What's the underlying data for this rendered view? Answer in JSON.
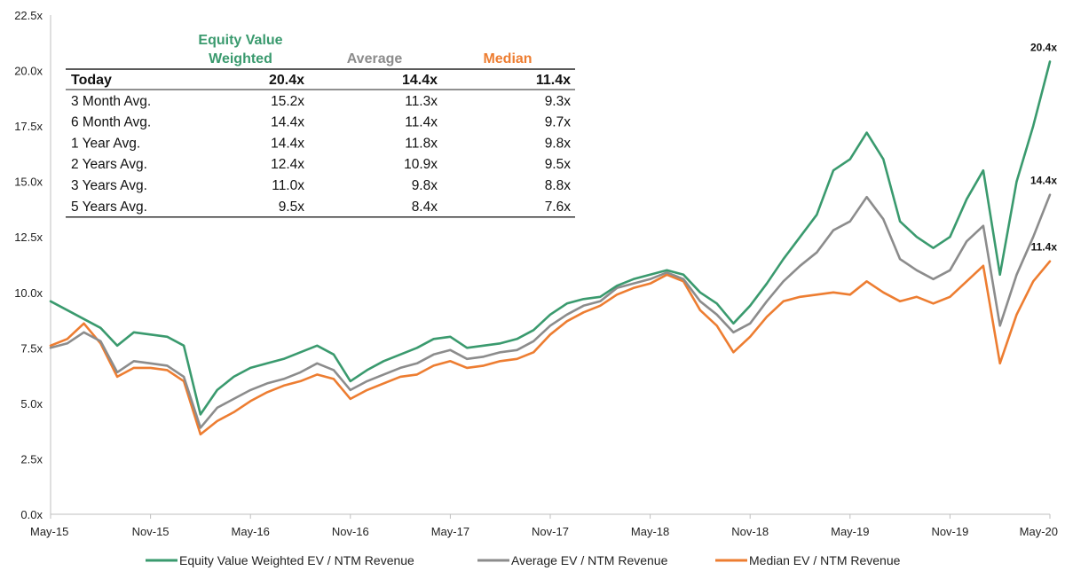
{
  "chart_data": {
    "type": "line",
    "title": "",
    "xlabel": "",
    "ylabel": "",
    "ylim": [
      0,
      22.5
    ],
    "y_ticks": [
      "0.0x",
      "2.5x",
      "5.0x",
      "7.5x",
      "10.0x",
      "12.5x",
      "15.0x",
      "17.5x",
      "20.0x",
      "22.5x"
    ],
    "x_ticks": [
      "May-15",
      "Nov-15",
      "May-16",
      "Nov-16",
      "May-17",
      "Nov-17",
      "May-18",
      "Nov-18",
      "May-19",
      "Nov-19",
      "May-20"
    ],
    "grid": false,
    "legend_position": "bottom",
    "series": [
      {
        "name": "Equity Value Weighted EV / NTM Revenue",
        "color": "#3a9a6e",
        "end_label": "20.4x",
        "x": [
          "2015-05",
          "2015-06",
          "2015-07",
          "2015-08",
          "2015-09",
          "2015-10",
          "2015-11",
          "2015-12",
          "2016-01",
          "2016-02",
          "2016-03",
          "2016-04",
          "2016-05",
          "2016-06",
          "2016-07",
          "2016-08",
          "2016-09",
          "2016-10",
          "2016-11",
          "2016-12",
          "2017-01",
          "2017-02",
          "2017-03",
          "2017-04",
          "2017-05",
          "2017-06",
          "2017-07",
          "2017-08",
          "2017-09",
          "2017-10",
          "2017-11",
          "2017-12",
          "2018-01",
          "2018-02",
          "2018-03",
          "2018-04",
          "2018-05",
          "2018-06",
          "2018-07",
          "2018-08",
          "2018-09",
          "2018-10",
          "2018-11",
          "2018-12",
          "2019-01",
          "2019-02",
          "2019-03",
          "2019-04",
          "2019-05",
          "2019-06",
          "2019-07",
          "2019-08",
          "2019-09",
          "2019-10",
          "2019-11",
          "2019-12",
          "2020-01",
          "2020-02",
          "2020-03",
          "2020-04",
          "2020-05"
        ],
        "values": [
          9.6,
          9.2,
          8.8,
          8.4,
          7.6,
          8.2,
          8.1,
          8.0,
          7.6,
          4.5,
          5.6,
          6.2,
          6.6,
          6.8,
          7.0,
          7.3,
          7.6,
          7.2,
          6.0,
          6.5,
          6.9,
          7.2,
          7.5,
          7.9,
          8.0,
          7.5,
          7.6,
          7.7,
          7.9,
          8.3,
          9.0,
          9.5,
          9.7,
          9.8,
          10.3,
          10.6,
          10.8,
          11.0,
          10.8,
          10.0,
          9.5,
          8.6,
          9.4,
          10.4,
          11.5,
          12.5,
          13.5,
          15.5,
          16.0,
          17.2,
          16.0,
          13.2,
          12.5,
          12.0,
          12.5,
          14.2,
          15.5,
          10.8,
          15.0,
          17.5,
          20.4
        ]
      },
      {
        "name": "Average EV / NTM Revenue",
        "color": "#8c8c8c",
        "end_label": "14.4x",
        "x": [
          "2015-05",
          "2015-06",
          "2015-07",
          "2015-08",
          "2015-09",
          "2015-10",
          "2015-11",
          "2015-12",
          "2016-01",
          "2016-02",
          "2016-03",
          "2016-04",
          "2016-05",
          "2016-06",
          "2016-07",
          "2016-08",
          "2016-09",
          "2016-10",
          "2016-11",
          "2016-12",
          "2017-01",
          "2017-02",
          "2017-03",
          "2017-04",
          "2017-05",
          "2017-06",
          "2017-07",
          "2017-08",
          "2017-09",
          "2017-10",
          "2017-11",
          "2017-12",
          "2018-01",
          "2018-02",
          "2018-03",
          "2018-04",
          "2018-05",
          "2018-06",
          "2018-07",
          "2018-08",
          "2018-09",
          "2018-10",
          "2018-11",
          "2018-12",
          "2019-01",
          "2019-02",
          "2019-03",
          "2019-04",
          "2019-05",
          "2019-06",
          "2019-07",
          "2019-08",
          "2019-09",
          "2019-10",
          "2019-11",
          "2019-12",
          "2020-01",
          "2020-02",
          "2020-03",
          "2020-04",
          "2020-05"
        ],
        "values": [
          7.5,
          7.7,
          8.2,
          7.8,
          6.4,
          6.9,
          6.8,
          6.7,
          6.2,
          3.9,
          4.8,
          5.2,
          5.6,
          5.9,
          6.1,
          6.4,
          6.8,
          6.5,
          5.6,
          6.0,
          6.3,
          6.6,
          6.8,
          7.2,
          7.4,
          7.0,
          7.1,
          7.3,
          7.4,
          7.8,
          8.5,
          9.0,
          9.4,
          9.6,
          10.2,
          10.4,
          10.6,
          10.9,
          10.6,
          9.6,
          9.0,
          8.2,
          8.6,
          9.6,
          10.5,
          11.2,
          11.8,
          12.8,
          13.2,
          14.3,
          13.3,
          11.5,
          11.0,
          10.6,
          11.0,
          12.3,
          13.0,
          8.5,
          10.8,
          12.5,
          14.4
        ]
      },
      {
        "name": "Median EV / NTM Revenue",
        "color": "#ed7d31",
        "end_label": "11.4x",
        "x": [
          "2015-05",
          "2015-06",
          "2015-07",
          "2015-08",
          "2015-09",
          "2015-10",
          "2015-11",
          "2015-12",
          "2016-01",
          "2016-02",
          "2016-03",
          "2016-04",
          "2016-05",
          "2016-06",
          "2016-07",
          "2016-08",
          "2016-09",
          "2016-10",
          "2016-11",
          "2016-12",
          "2017-01",
          "2017-02",
          "2017-03",
          "2017-04",
          "2017-05",
          "2017-06",
          "2017-07",
          "2017-08",
          "2017-09",
          "2017-10",
          "2017-11",
          "2017-12",
          "2018-01",
          "2018-02",
          "2018-03",
          "2018-04",
          "2018-05",
          "2018-06",
          "2018-07",
          "2018-08",
          "2018-09",
          "2018-10",
          "2018-11",
          "2018-12",
          "2019-01",
          "2019-02",
          "2019-03",
          "2019-04",
          "2019-05",
          "2019-06",
          "2019-07",
          "2019-08",
          "2019-09",
          "2019-10",
          "2019-11",
          "2019-12",
          "2020-01",
          "2020-02",
          "2020-03",
          "2020-04",
          "2020-05"
        ],
        "values": [
          7.6,
          7.9,
          8.6,
          7.7,
          6.2,
          6.6,
          6.6,
          6.5,
          6.0,
          3.6,
          4.2,
          4.6,
          5.1,
          5.5,
          5.8,
          6.0,
          6.3,
          6.1,
          5.2,
          5.6,
          5.9,
          6.2,
          6.3,
          6.7,
          6.9,
          6.6,
          6.7,
          6.9,
          7.0,
          7.3,
          8.1,
          8.7,
          9.1,
          9.4,
          9.9,
          10.2,
          10.4,
          10.8,
          10.5,
          9.2,
          8.5,
          7.3,
          8.0,
          8.9,
          9.6,
          9.8,
          9.9,
          10.0,
          9.9,
          10.5,
          10.0,
          9.6,
          9.8,
          9.5,
          9.8,
          10.5,
          11.2,
          6.8,
          9.0,
          10.5,
          11.4
        ]
      }
    ],
    "summary_table": {
      "headers": {
        "weighted_line1": "Equity Value",
        "weighted_line2": "Weighted",
        "average": "Average",
        "median": "Median"
      },
      "rows": [
        {
          "label": "Today",
          "weighted": "20.4x",
          "average": "14.4x",
          "median": "11.4x",
          "bold": true
        },
        {
          "label": "3 Month Avg.",
          "weighted": "15.2x",
          "average": "11.3x",
          "median": "9.3x"
        },
        {
          "label": "6 Month Avg.",
          "weighted": "14.4x",
          "average": "11.4x",
          "median": "9.7x"
        },
        {
          "label": "1 Year Avg.",
          "weighted": "14.4x",
          "average": "11.8x",
          "median": "9.8x"
        },
        {
          "label": "2 Years Avg.",
          "weighted": "12.4x",
          "average": "10.9x",
          "median": "9.5x"
        },
        {
          "label": "3 Years Avg.",
          "weighted": "11.0x",
          "average": "9.8x",
          "median": "8.8x"
        },
        {
          "label": "5 Years Avg.",
          "weighted": "9.5x",
          "average": "8.4x",
          "median": "7.6x"
        }
      ]
    }
  }
}
